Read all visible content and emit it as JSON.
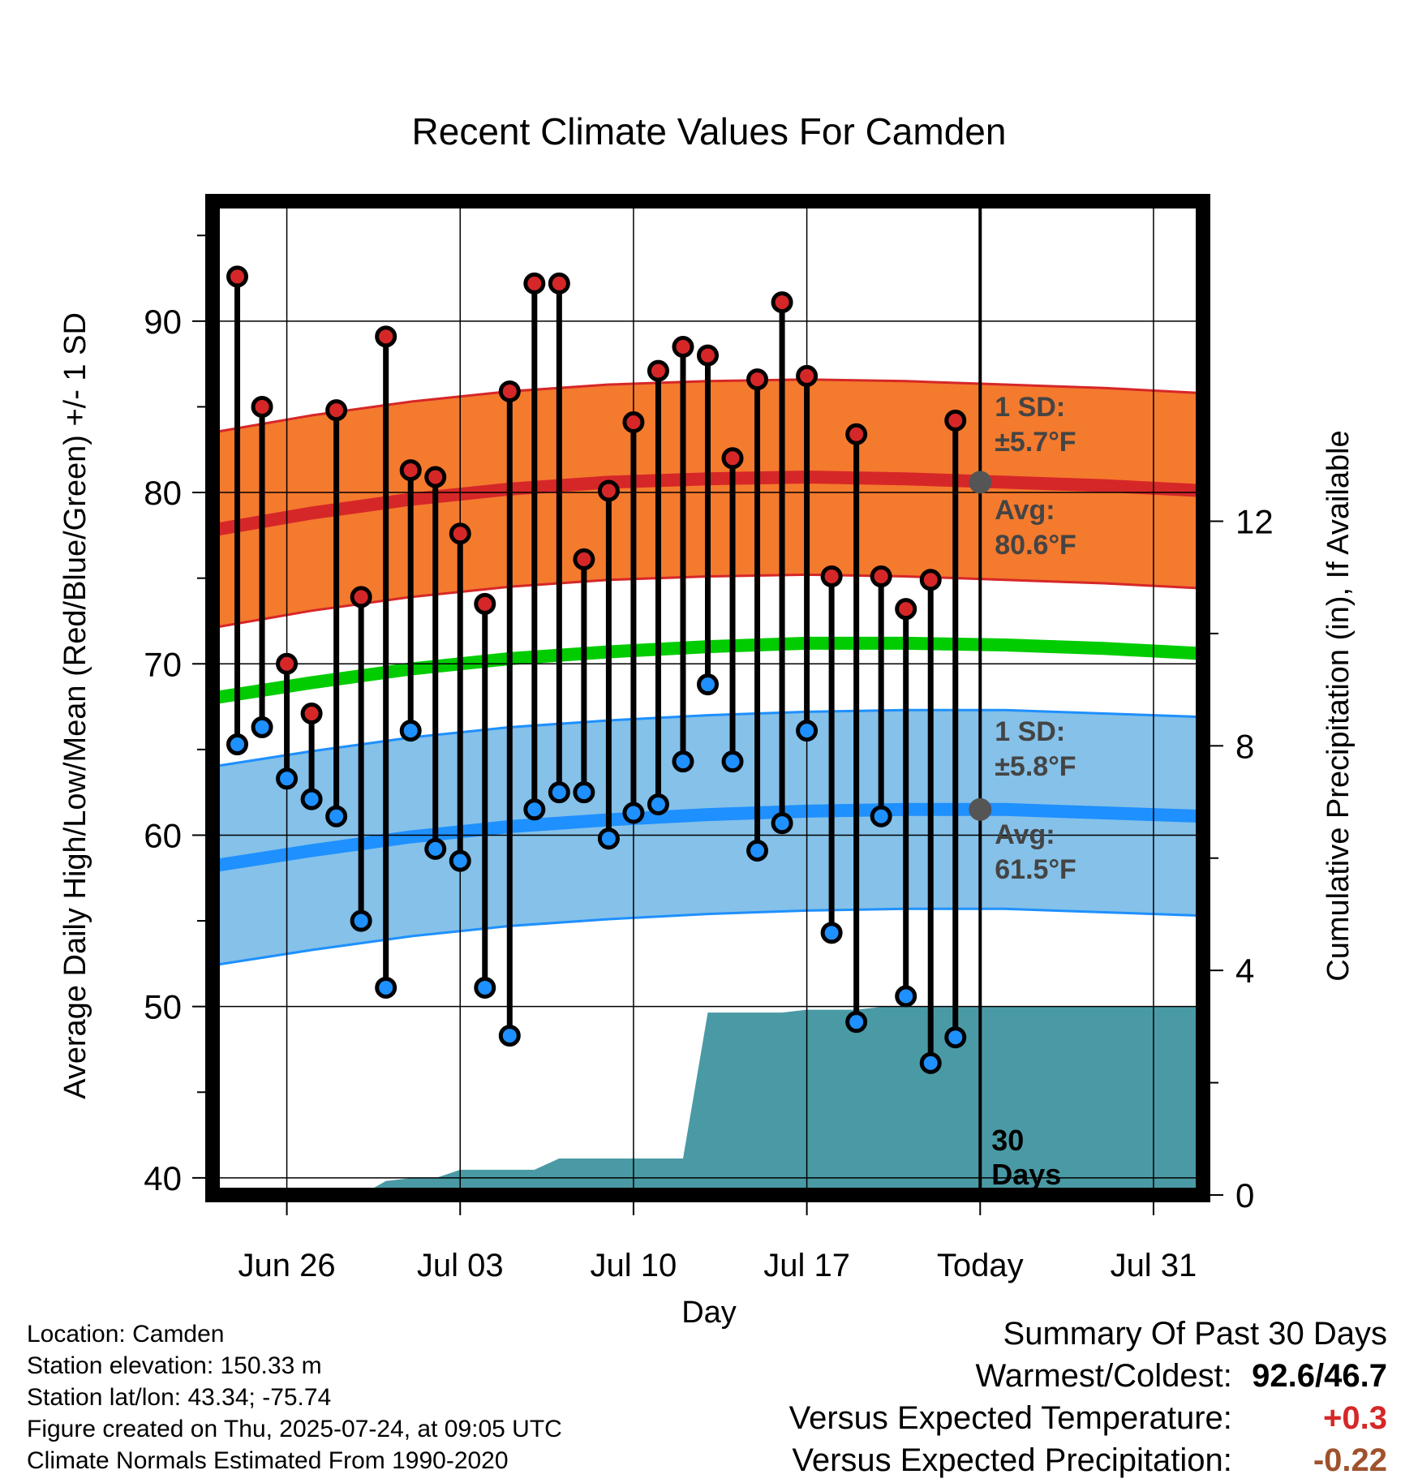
{
  "chart_data": {
    "type": "line",
    "title": "Recent Climate Values For Camden",
    "xlabel": "Day",
    "ylabel": "Average Daily High/Low/Mean (Red/Blue/Green) +/- 1 SD",
    "y2label": "Cumulative Precipitation (in), If Available",
    "ylim": [
      39,
      97
    ],
    "y2lim": [
      0,
      17.7
    ],
    "yticks": [
      "40",
      "50",
      "60",
      "70",
      "80",
      "90"
    ],
    "y2ticks": [
      "0",
      "4",
      "8",
      "12"
    ],
    "xticks": [
      "Jun 26",
      "Jul 03",
      "Jul 10",
      "Jul 17",
      "Today",
      "Jul 31"
    ],
    "x_range_days": [
      "Jun 23",
      "Aug 02"
    ],
    "today_marker": "Today",
    "period_label": "30\nDays",
    "daily_dates": [
      "Jun 24",
      "Jun 25",
      "Jun 26",
      "Jun 27",
      "Jun 28",
      "Jun 29",
      "Jun 30",
      "Jul 01",
      "Jul 02",
      "Jul 03",
      "Jul 04",
      "Jul 05",
      "Jul 06",
      "Jul 07",
      "Jul 08",
      "Jul 09",
      "Jul 10",
      "Jul 11",
      "Jul 12",
      "Jul 13",
      "Jul 14",
      "Jul 15",
      "Jul 16",
      "Jul 17",
      "Jul 18",
      "Jul 19",
      "Jul 20",
      "Jul 21",
      "Jul 22",
      "Jul 23"
    ],
    "series": [
      {
        "name": "High",
        "color": "#d62728",
        "values": [
          92.6,
          85.0,
          70.0,
          67.1,
          84.8,
          73.9,
          89.1,
          81.3,
          80.9,
          77.6,
          73.5,
          85.9,
          92.2,
          92.2,
          76.1,
          80.1,
          84.1,
          87.1,
          88.5,
          88.0,
          82.0,
          86.6,
          91.1,
          86.8,
          75.1,
          83.4,
          75.1,
          73.2,
          74.9,
          84.2
        ]
      },
      {
        "name": "Low",
        "color": "#1e90ff",
        "values": [
          65.3,
          66.3,
          63.3,
          62.1,
          61.1,
          55.0,
          51.1,
          66.1,
          59.2,
          58.5,
          51.1,
          48.3,
          61.5,
          62.5,
          62.5,
          59.8,
          61.3,
          61.8,
          64.3,
          68.8,
          64.3,
          59.1,
          60.7,
          66.1,
          54.3,
          49.1,
          61.1,
          50.6,
          46.7,
          48.2
        ]
      }
    ],
    "normals": {
      "days": [
        "Jun 23",
        "Jun 27",
        "Jul 01",
        "Jul 05",
        "Jul 09",
        "Jul 13",
        "Jul 17",
        "Jul 21",
        "Jul 25",
        "Jul 29",
        "Aug 02"
      ],
      "high_avg": [
        77.8,
        78.8,
        79.6,
        80.2,
        80.6,
        80.8,
        80.9,
        80.8,
        80.6,
        80.4,
        80.1
      ],
      "high_sd": 5.7,
      "low_avg": [
        58.2,
        59.1,
        59.9,
        60.5,
        60.9,
        61.2,
        61.4,
        61.5,
        61.5,
        61.3,
        61.1
      ],
      "low_sd": 5.8,
      "mean_avg": [
        68.0,
        68.9,
        69.7,
        70.3,
        70.7,
        71.0,
        71.2,
        71.2,
        71.1,
        70.9,
        70.6
      ]
    },
    "precip": {
      "name": "Cumulative Precipitation",
      "color": "#4a9aa5",
      "dates": [
        "Jun 23",
        "Jun 29",
        "Jun 30",
        "Jul 01",
        "Jul 02",
        "Jul 03",
        "Jul 06",
        "Jul 07",
        "Jul 12",
        "Jul 13",
        "Jul 16",
        "Jul 17",
        "Jul 19",
        "Jul 20",
        "Jul 24",
        "Aug 02"
      ],
      "values": [
        0,
        0,
        0.25,
        0.3,
        0.3,
        0.45,
        0.45,
        0.65,
        0.65,
        3.25,
        3.25,
        3.3,
        3.3,
        3.35,
        3.35,
        3.35
      ]
    },
    "annotations": {
      "high_sd_label": "1 SD:",
      "high_sd_value": "±5.7°F",
      "high_avg_label": "Avg:",
      "high_avg_value": "80.6°F",
      "low_sd_label": "1 SD:",
      "low_sd_value": "±5.8°F",
      "low_avg_label": "Avg:",
      "low_avg_value": "61.5°F",
      "today_high_avg": 80.6,
      "today_low_avg": 61.5
    },
    "grid": true
  },
  "footer": {
    "location": "Location: Camden",
    "elevation": "Station elevation: 150.33 m",
    "latlon": "Station lat/lon: 43.34; -75.74",
    "created": "Figure created on Thu, 2025-07-24, at 09:05 UTC",
    "normals": "Climate Normals Estimated From 1990-2020"
  },
  "summary": {
    "title": "Summary Of Past 30 Days",
    "warm_cold_label": "Warmest/Coldest:",
    "warm_cold_value": "92.6/46.7",
    "temp_label": "Versus Expected Temperature:",
    "temp_value": "+0.3",
    "precip_label": "Versus Expected Precipitation:",
    "precip_value": "-0.22"
  }
}
